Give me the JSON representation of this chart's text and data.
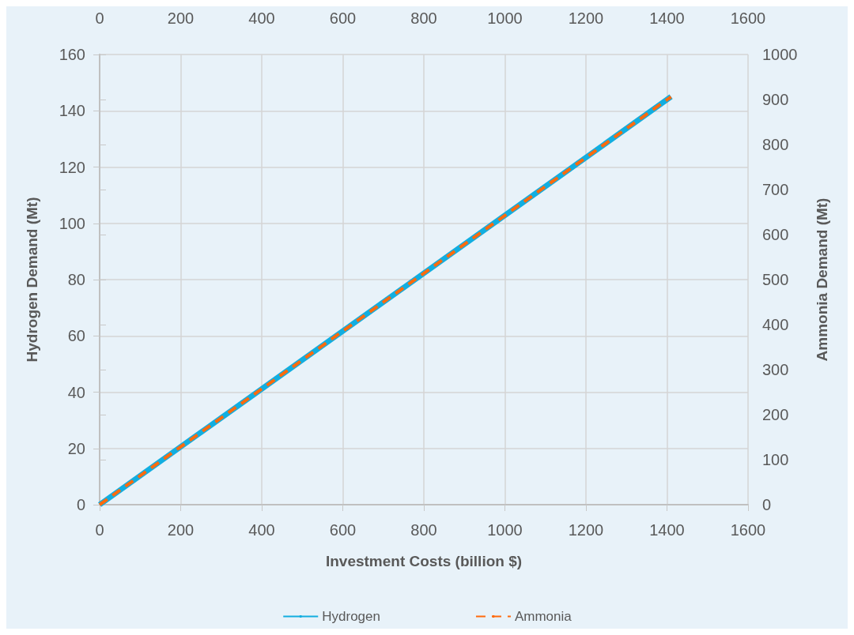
{
  "chart_data": {
    "type": "line",
    "xlabel": "Investment Costs (billion $)",
    "ylabel": "Hydrogen Demand (Mt)",
    "y2label": "Ammonia Demand (Mt)",
    "x": [
      0,
      1410
    ],
    "series": [
      {
        "name": "Hydrogen",
        "color": "#12aee0",
        "values": [
          0,
          145
        ],
        "line_style": "solid"
      },
      {
        "name": "Ammonia",
        "color": "#ff6a0d",
        "values": [
          0,
          906
        ],
        "axis": "y2",
        "line_style": "dashed"
      }
    ],
    "xlim": [
      0,
      1600
    ],
    "xticks": [
      0,
      200,
      400,
      600,
      800,
      1000,
      1200,
      1400,
      1600
    ],
    "x2lim": [
      0,
      1600
    ],
    "x2ticks": [
      0,
      200,
      400,
      600,
      800,
      1000,
      1200,
      1400,
      1600
    ],
    "ylim": [
      0,
      160
    ],
    "yticks": [
      0,
      20,
      40,
      60,
      80,
      100,
      120,
      140,
      160
    ],
    "y2lim": [
      0,
      1000
    ],
    "y2ticks": [
      0,
      100,
      200,
      300,
      400,
      500,
      600,
      700,
      800,
      900,
      1000
    ],
    "grid": true,
    "legend": "bottom",
    "marker": "none"
  }
}
